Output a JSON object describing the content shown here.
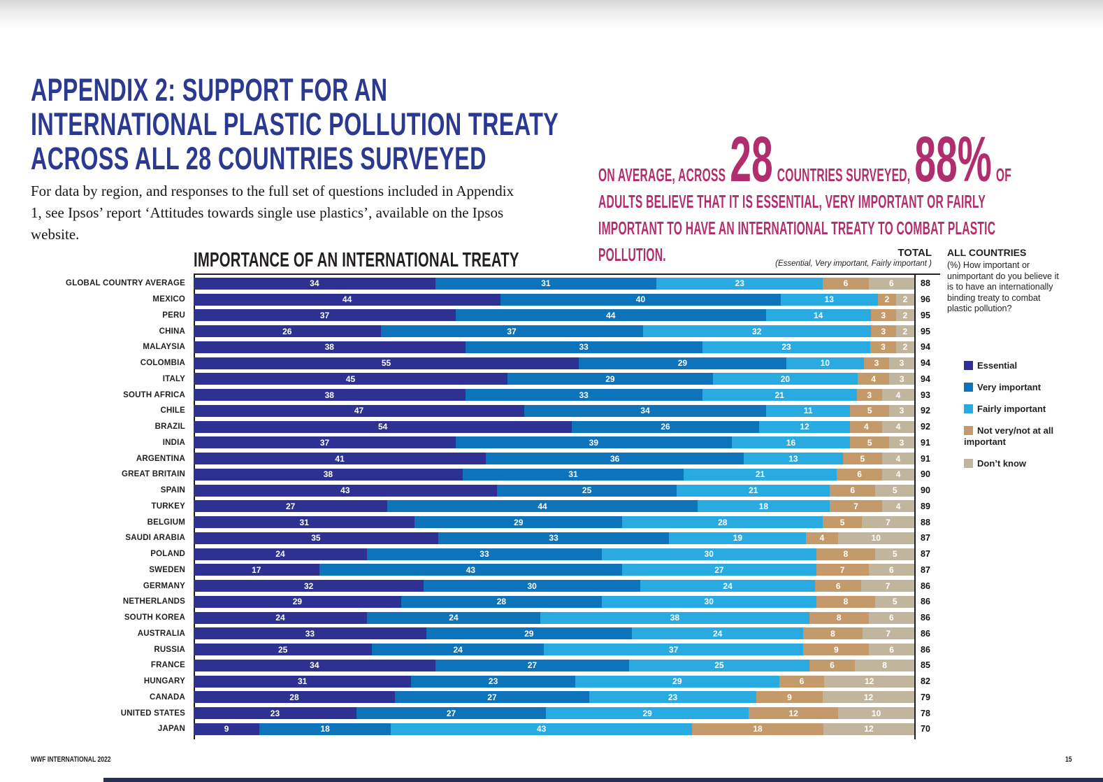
{
  "page": {
    "title_lines": [
      "APPENDIX 2: SUPPORT FOR AN",
      "INTERNATIONAL PLASTIC POLLUTION TREATY",
      "ACROSS ALL 28 COUNTRIES SURVEYED"
    ],
    "intro": "For data by region, and responses to the full set of questions included in Appendix 1, see Ipsos’ report ‘Attitudes towards single use plastics’, available on the Ipsos website.",
    "footer_left": "WWF INTERNATIONAL 2022",
    "page_number": "15",
    "title_color": "#2b3990"
  },
  "callout": {
    "part1": "ON AVERAGE, ACROSS",
    "big1": "28",
    "part2": "COUNTRIES SURVEYED,",
    "big2": "88%",
    "part3": "OF ADULTS BELIEVE THAT IT IS ESSENTIAL, VERY IMPORTANT OR FAIRLY IMPORTANT TO HAVE AN INTERNATIONAL TREATY TO COMBAT PLASTIC POLLUTION.",
    "color": "#b02e6d"
  },
  "sidebar": {
    "heading": "ALL COUNTRIES",
    "question": "(%) How important or unimportant do you believe it is to have an internationally binding treaty to combat plastic pollution?"
  },
  "chart_data": {
    "type": "bar",
    "stacked": true,
    "orientation": "horizontal",
    "title": "IMPORTANCE OF AN INTERNATIONAL TREATY",
    "total_header": "TOTAL",
    "total_subheader": "(Essential, Very important, Fairly important )",
    "xlim": [
      0,
      100
    ],
    "grid": false,
    "legend_position": "right",
    "series_names": [
      "Essential",
      "Very important",
      "Fairly important",
      "Not very/not at all important",
      "Don’t know"
    ],
    "legend": [
      {
        "label": "Essential",
        "color": "#2e3192"
      },
      {
        "label": "Very important",
        "color": "#0d73ba"
      },
      {
        "label": "Fairly important",
        "color": "#29abe2"
      },
      {
        "label": "Not very/not at all important",
        "color": "#c49a6b"
      },
      {
        "label": "Don’t know",
        "color": "#c2b59d"
      }
    ],
    "rows": [
      {
        "country": "GLOBAL COUNTRY AVERAGE",
        "values": [
          34,
          31,
          23,
          6,
          6
        ],
        "total": 88
      },
      {
        "country": "MEXICO",
        "values": [
          44,
          40,
          13,
          2,
          2
        ],
        "total": 96
      },
      {
        "country": "PERU",
        "values": [
          37,
          44,
          14,
          3,
          2
        ],
        "total": 95
      },
      {
        "country": "CHINA",
        "values": [
          26,
          37,
          32,
          3,
          2
        ],
        "total": 95
      },
      {
        "country": "MALAYSIA",
        "values": [
          38,
          33,
          23,
          3,
          2
        ],
        "total": 94
      },
      {
        "country": "COLOMBIA",
        "values": [
          55,
          29,
          10,
          3,
          3
        ],
        "total": 94
      },
      {
        "country": "ITALY",
        "values": [
          45,
          29,
          20,
          4,
          3
        ],
        "total": 94
      },
      {
        "country": "SOUTH AFRICA",
        "values": [
          38,
          33,
          21,
          3,
          4
        ],
        "total": 93
      },
      {
        "country": "CHILE",
        "values": [
          47,
          34,
          11,
          5,
          3
        ],
        "total": 92
      },
      {
        "country": "BRAZIL",
        "values": [
          54,
          26,
          12,
          4,
          4
        ],
        "total": 92
      },
      {
        "country": "INDIA",
        "values": [
          37,
          39,
          16,
          5,
          3
        ],
        "total": 91
      },
      {
        "country": "ARGENTINA",
        "values": [
          41,
          36,
          13,
          5,
          4
        ],
        "total": 91
      },
      {
        "country": "GREAT BRITAIN",
        "values": [
          38,
          31,
          21,
          6,
          4
        ],
        "total": 90
      },
      {
        "country": "SPAIN",
        "values": [
          43,
          25,
          21,
          6,
          5
        ],
        "total": 90
      },
      {
        "country": "TURKEY",
        "values": [
          27,
          44,
          18,
          7,
          4
        ],
        "total": 89
      },
      {
        "country": "BELGIUM",
        "values": [
          31,
          29,
          28,
          5,
          7
        ],
        "total": 88
      },
      {
        "country": "SAUDI ARABIA",
        "values": [
          35,
          33,
          19,
          4,
          10
        ],
        "total": 87
      },
      {
        "country": "POLAND",
        "values": [
          24,
          33,
          30,
          8,
          5
        ],
        "total": 87
      },
      {
        "country": "SWEDEN",
        "values": [
          17,
          43,
          27,
          7,
          6
        ],
        "total": 87
      },
      {
        "country": "GERMANY",
        "values": [
          32,
          30,
          24,
          6,
          7
        ],
        "total": 86
      },
      {
        "country": "NETHERLANDS",
        "values": [
          29,
          28,
          30,
          8,
          5
        ],
        "total": 86
      },
      {
        "country": "SOUTH KOREA",
        "values": [
          24,
          24,
          38,
          8,
          6
        ],
        "total": 86
      },
      {
        "country": "AUSTRALIA",
        "values": [
          33,
          29,
          24,
          8,
          7
        ],
        "total": 86
      },
      {
        "country": "RUSSIA",
        "values": [
          25,
          24,
          37,
          9,
          6
        ],
        "total": 86
      },
      {
        "country": "FRANCE",
        "values": [
          34,
          27,
          25,
          6,
          8
        ],
        "total": 85
      },
      {
        "country": "HUNGARY",
        "values": [
          31,
          23,
          29,
          6,
          12
        ],
        "total": 82
      },
      {
        "country": "CANADA",
        "values": [
          28,
          27,
          23,
          9,
          12
        ],
        "total": 79
      },
      {
        "country": "UNITED STATES",
        "values": [
          23,
          27,
          29,
          12,
          10
        ],
        "total": 78
      },
      {
        "country": "JAPAN",
        "values": [
          9,
          18,
          43,
          18,
          12
        ],
        "total": 70
      }
    ]
  }
}
